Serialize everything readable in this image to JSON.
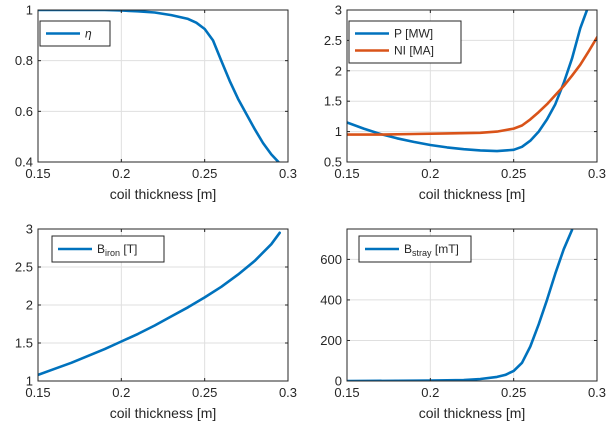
{
  "colors": {
    "blue": "#0072BD",
    "orange": "#D95319",
    "grid": "#dfdfdf",
    "axis": "#262626"
  },
  "chart_data": [
    {
      "type": "line",
      "xlabel": "coil thickness [m]",
      "ylabel": "",
      "xlim": [
        0.15,
        0.3
      ],
      "ylim": [
        0.4,
        1
      ],
      "xticks": [
        "0.15",
        "0.2",
        "0.25",
        "0.3"
      ],
      "yticks": [
        "0.4",
        "0.6",
        "0.8",
        "1"
      ],
      "xtick_values": [
        0.15,
        0.2,
        0.25,
        0.3
      ],
      "ytick_values": [
        0.4,
        0.6,
        0.8,
        1.0
      ],
      "grid": true,
      "legend_position": "top-left",
      "series": [
        {
          "name": "η",
          "name_main": "η",
          "name_sub": "",
          "name_suffix": "",
          "color": "#0072BD",
          "x": [
            0.15,
            0.17,
            0.19,
            0.2,
            0.21,
            0.22,
            0.23,
            0.24,
            0.245,
            0.25,
            0.255,
            0.26,
            0.265,
            0.27,
            0.275,
            0.28,
            0.285,
            0.29,
            0.295
          ],
          "y": [
            1.0,
            1.0,
            1.0,
            0.998,
            0.995,
            0.99,
            0.98,
            0.965,
            0.95,
            0.925,
            0.88,
            0.8,
            0.72,
            0.65,
            0.59,
            0.53,
            0.475,
            0.43,
            0.395
          ]
        }
      ]
    },
    {
      "type": "line",
      "xlabel": "coil thickness [m]",
      "ylabel": "",
      "xlim": [
        0.15,
        0.3
      ],
      "ylim": [
        0.5,
        3
      ],
      "xticks": [
        "0.15",
        "0.2",
        "0.25",
        "0.3"
      ],
      "yticks": [
        "0.5",
        "1",
        "1.5",
        "2",
        "2.5",
        "3"
      ],
      "xtick_values": [
        0.15,
        0.2,
        0.25,
        0.3
      ],
      "ytick_values": [
        0.5,
        1.0,
        1.5,
        2.0,
        2.5,
        3.0
      ],
      "grid": true,
      "legend_position": "top-left",
      "series": [
        {
          "name": "P [MW]",
          "name_main": "P [MW]",
          "name_sub": "",
          "name_suffix": "",
          "color": "#0072BD",
          "x": [
            0.15,
            0.16,
            0.17,
            0.18,
            0.19,
            0.2,
            0.21,
            0.22,
            0.23,
            0.24,
            0.25,
            0.255,
            0.26,
            0.265,
            0.27,
            0.275,
            0.28,
            0.285,
            0.29,
            0.294
          ],
          "y": [
            1.15,
            1.05,
            0.96,
            0.89,
            0.83,
            0.78,
            0.74,
            0.71,
            0.69,
            0.68,
            0.7,
            0.75,
            0.85,
            1.0,
            1.2,
            1.45,
            1.8,
            2.2,
            2.7,
            3.0
          ]
        },
        {
          "name": "NI [MA]",
          "name_main": "NI [MA]",
          "name_sub": "",
          "name_suffix": "",
          "color": "#D95319",
          "x": [
            0.15,
            0.17,
            0.19,
            0.21,
            0.23,
            0.24,
            0.25,
            0.255,
            0.26,
            0.265,
            0.27,
            0.275,
            0.28,
            0.285,
            0.29,
            0.295,
            0.3
          ],
          "y": [
            0.95,
            0.95,
            0.96,
            0.97,
            0.98,
            1.0,
            1.05,
            1.1,
            1.2,
            1.32,
            1.45,
            1.6,
            1.75,
            1.92,
            2.1,
            2.32,
            2.55
          ]
        }
      ]
    },
    {
      "type": "line",
      "xlabel": "coil thickness [m]",
      "ylabel": "",
      "xlim": [
        0.15,
        0.3
      ],
      "ylim": [
        1,
        3
      ],
      "xticks": [
        "0.15",
        "0.2",
        "0.25",
        "0.3"
      ],
      "yticks": [
        "1",
        "1.5",
        "2",
        "2.5",
        "3"
      ],
      "xtick_values": [
        0.15,
        0.2,
        0.25,
        0.3
      ],
      "ytick_values": [
        1.0,
        1.5,
        2.0,
        2.5,
        3.0
      ],
      "grid": true,
      "legend_position": "top-left",
      "series": [
        {
          "name": "Biron [T]",
          "name_main": "B",
          "name_sub": "iron",
          "name_suffix": " [T]",
          "color": "#0072BD",
          "x": [
            0.15,
            0.16,
            0.17,
            0.18,
            0.19,
            0.2,
            0.21,
            0.22,
            0.23,
            0.24,
            0.25,
            0.26,
            0.27,
            0.28,
            0.29,
            0.295
          ],
          "y": [
            1.08,
            1.16,
            1.24,
            1.33,
            1.42,
            1.52,
            1.62,
            1.73,
            1.85,
            1.97,
            2.1,
            2.24,
            2.4,
            2.58,
            2.8,
            2.95
          ]
        }
      ]
    },
    {
      "type": "line",
      "xlabel": "coil thickness [m]",
      "ylabel": "",
      "xlim": [
        0.15,
        0.3
      ],
      "ylim": [
        0,
        750
      ],
      "xticks": [
        "0.15",
        "0.2",
        "0.25",
        "0.3"
      ],
      "yticks": [
        "0",
        "200",
        "400",
        "600"
      ],
      "xtick_values": [
        0.15,
        0.2,
        0.25,
        0.3
      ],
      "ytick_values": [
        0,
        200,
        400,
        600
      ],
      "grid": true,
      "legend_position": "top-left",
      "series": [
        {
          "name": "Bstray [mT]",
          "name_main": "B",
          "name_sub": "stray",
          "name_suffix": " [mT]",
          "color": "#0072BD",
          "x": [
            0.15,
            0.18,
            0.2,
            0.22,
            0.23,
            0.24,
            0.245,
            0.25,
            0.255,
            0.26,
            0.265,
            0.27,
            0.275,
            0.28,
            0.285
          ],
          "y": [
            0,
            1,
            2,
            5,
            10,
            20,
            30,
            50,
            90,
            170,
            280,
            400,
            530,
            650,
            745
          ]
        }
      ]
    }
  ]
}
